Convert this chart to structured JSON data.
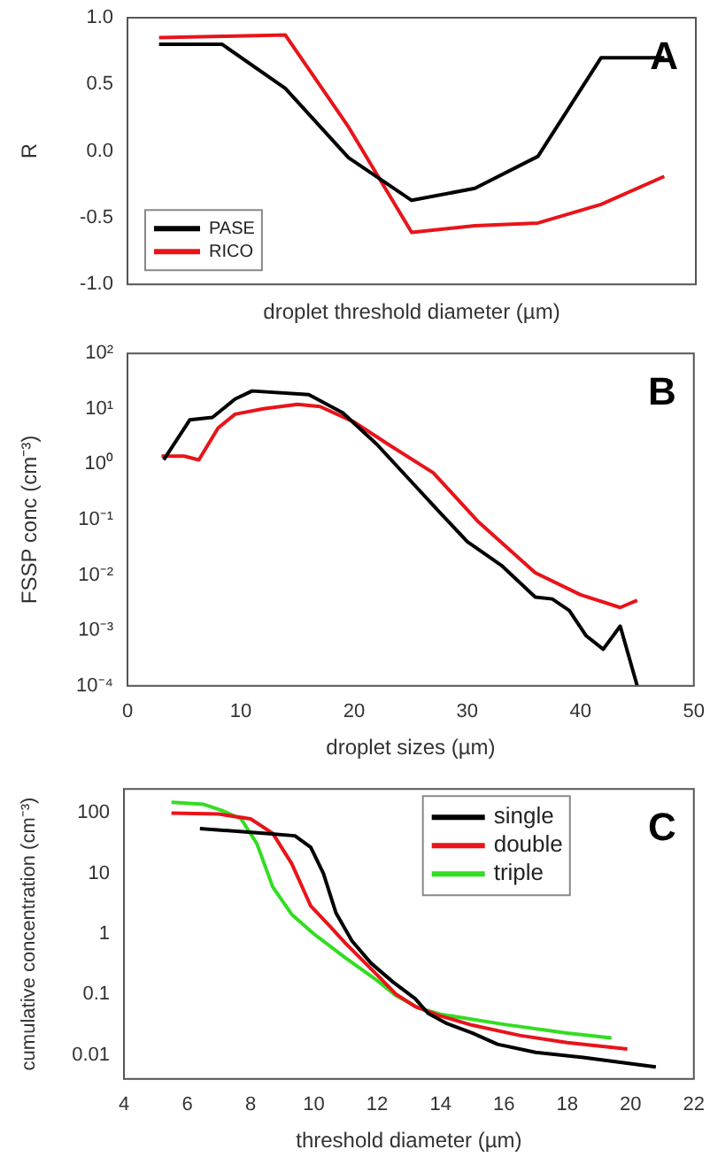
{
  "chart_data": [
    {
      "type": "line",
      "xlabel": "droplet threshold diameter (µm)",
      "ylabel": "R",
      "annotations": [
        "A"
      ],
      "categories": [
        null,
        null,
        null,
        null,
        null,
        null,
        null,
        null,
        null
      ],
      "ylim": [
        -1,
        1
      ],
      "yticks": [
        {
          "value": -1,
          "label": "-1.0"
        },
        -0.5,
        {
          "value": 0,
          "label": "0.0"
        },
        0.5,
        {
          "value": 1,
          "label": "1.0"
        }
      ],
      "tick_labels": "y",
      "grid": false,
      "legend": "bottom left",
      "marker": "none",
      "line_style": "solid",
      "series": [
        {
          "name": "PASE",
          "color": "#000000",
          "values": [
            0.8,
            0.8,
            0.47,
            -0.05,
            -0.37,
            -0.28,
            -0.04,
            0.7,
            0.7
          ]
        },
        {
          "name": "RICO",
          "color": "#e8141a",
          "values": [
            0.85,
            0.86,
            0.87,
            0.18,
            -0.61,
            -0.56,
            -0.54,
            -0.4,
            -0.19
          ]
        }
      ]
    },
    {
      "type": "line",
      "xlabel": "droplet sizes (µm)",
      "ylabel": "FSSP conc (cm⁻³)",
      "annotations": [
        "B"
      ],
      "log": "y",
      "xlim": [
        0,
        50
      ],
      "xticks": [
        0,
        10,
        20,
        30,
        40,
        50
      ],
      "ylim": [
        0.0001,
        100
      ],
      "yticks": [
        {
          "value": 0.0001,
          "label": "10⁻⁴"
        },
        {
          "value": 0.001,
          "label": "10⁻³"
        },
        {
          "value": 0.01,
          "label": "10⁻²"
        },
        {
          "value": 0.1,
          "label": "10⁻¹"
        },
        {
          "value": 1,
          "label": "10⁰"
        },
        {
          "value": 10,
          "label": "10¹"
        },
        {
          "value": 100,
          "label": "10²"
        }
      ],
      "grid": false,
      "marker": "none",
      "line_style": "solid",
      "series": [
        {
          "color": "#000000",
          "x": [
            3.2,
            5.5,
            7.5,
            9.5,
            11,
            16,
            19,
            22,
            25,
            27.5,
            30,
            33,
            36,
            37.5,
            39,
            40.5,
            42,
            43.5,
            45
          ],
          "values": [
            1.2,
            6.3,
            7,
            15,
            21,
            18,
            8.5,
            2.3,
            0.5,
            0.14,
            0.04,
            0.015,
            0.004,
            0.0037,
            0.0023,
            0.0008,
            0.00046,
            0.0012,
            0.0001
          ]
        },
        {
          "color": "#e8141a",
          "x": [
            3,
            5,
            6.3,
            8,
            9.5,
            12,
            15,
            17,
            20,
            23,
            27,
            31,
            36,
            40,
            43.5,
            45
          ],
          "values": [
            1.4,
            1.4,
            1.2,
            4.5,
            8,
            10,
            12,
            11,
            5.8,
            2.3,
            0.7,
            0.09,
            0.011,
            0.0044,
            0.0026,
            0.0035
          ]
        }
      ]
    },
    {
      "type": "line",
      "xlabel": "threshold diameter (µm)",
      "ylabel": "cumulative concentration (cm⁻³)",
      "annotations": [
        "C"
      ],
      "log": "y",
      "xlim": [
        4,
        22
      ],
      "xticks": [
        4,
        6,
        8,
        10,
        12,
        14,
        16,
        18,
        20,
        22
      ],
      "ylim": [
        0.004,
        250
      ],
      "yticks": [
        0.01,
        0.1,
        1,
        10,
        100
      ],
      "grid": false,
      "legend": "top right",
      "marker": "none",
      "line_style": "solid",
      "series": [
        {
          "name": "single",
          "color": "#000000",
          "x": [
            6.4,
            8.5,
            9.4,
            9.9,
            10.3,
            10.7,
            11.2,
            11.8,
            12.5,
            13.2,
            13.6,
            14.2,
            15,
            15.8,
            17,
            18.5,
            20.8
          ],
          "values": [
            55,
            46,
            42,
            27,
            10,
            2.2,
            0.77,
            0.33,
            0.16,
            0.085,
            0.049,
            0.033,
            0.023,
            0.015,
            0.011,
            0.0091,
            0.0063
          ]
        },
        {
          "name": "double",
          "color": "#e8141a",
          "x": [
            5.5,
            7,
            8,
            8.7,
            9.3,
            9.9,
            10.5,
            11,
            12,
            12.6,
            13.2,
            14,
            15,
            16.5,
            18,
            19.9
          ],
          "values": [
            100,
            96,
            80,
            46,
            14.5,
            2.9,
            1.35,
            0.7,
            0.21,
            0.1,
            0.063,
            0.044,
            0.031,
            0.021,
            0.016,
            0.0125
          ]
        },
        {
          "name": "triple",
          "color": "#33dd22",
          "x": [
            5.5,
            6.5,
            7.1,
            7.7,
            8.2,
            8.7,
            9.3,
            10,
            11,
            12,
            12.6,
            13.3,
            14,
            16,
            18,
            19.4
          ],
          "values": [
            150,
            140,
            110,
            80,
            31,
            6,
            2.1,
            1,
            0.4,
            0.17,
            0.095,
            0.06,
            0.047,
            0.032,
            0.023,
            0.019
          ]
        }
      ]
    }
  ]
}
